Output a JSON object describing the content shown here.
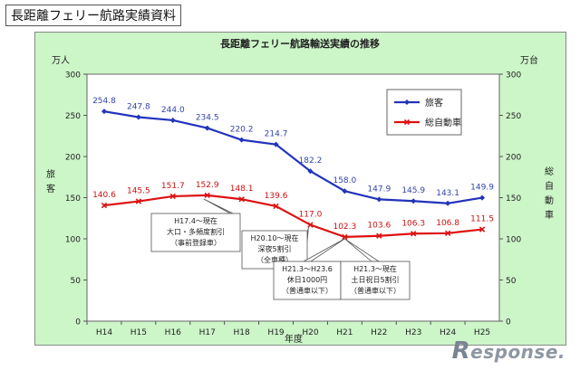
{
  "page_title": "長距離フェリー航路実績資料",
  "watermark": {
    "first": "R",
    "rest": "esponse."
  },
  "chart_data": {
    "type": "line",
    "title": "長距離フェリー航路輸送実績の推移",
    "xlabel": "年度",
    "y_unit_left": "万人",
    "y_unit_right": "万台",
    "ylabel_left": "旅客",
    "ylabel_right": "総自動車",
    "ylim": [
      0,
      300
    ],
    "yticks": [
      0,
      50,
      100,
      150,
      200,
      250,
      300
    ],
    "categories": [
      "H14",
      "H15",
      "H16",
      "H17",
      "H18",
      "H19",
      "H20",
      "H21",
      "H22",
      "H23",
      "H24",
      "H25"
    ],
    "legend_position": "top-right",
    "grid": false,
    "series": [
      {
        "name": "旅客",
        "color": "#2233bb",
        "values": [
          254.8,
          247.8,
          244.0,
          234.5,
          220.2,
          214.7,
          182.2,
          158.0,
          147.9,
          145.9,
          143.1,
          149.9
        ],
        "labels": [
          "254.8",
          "247.8",
          "244.0",
          "234.5",
          "220.2",
          "214.7",
          "182.2",
          "158.0",
          "147.9",
          "145.9",
          "143.1",
          "149.9"
        ]
      },
      {
        "name": "総自動車",
        "color": "#dd1111",
        "values": [
          140.6,
          145.5,
          151.7,
          152.9,
          148.1,
          139.6,
          117.0,
          102.3,
          103.6,
          106.3,
          106.8,
          111.5
        ],
        "labels": [
          "140.6",
          "145.5",
          "151.7",
          "152.9",
          "148.1",
          "139.6",
          "117.0",
          "102.3",
          "103.6",
          "106.3",
          "106.8",
          "111.5"
        ]
      }
    ],
    "annotations": [
      {
        "lines": [
          "H17.4～現在",
          "大口・多頻度割引",
          "（事前登録車）"
        ],
        "category_index": 3,
        "value": 152.9
      },
      {
        "lines": [
          "H20.10～現在",
          "深夜5割引",
          "（全車種）"
        ],
        "category_index": 6,
        "value": 117.0
      },
      {
        "lines": [
          "H21.3～H23.6",
          "休日1000円",
          "（普通車以下）"
        ],
        "category_index": 7,
        "value": 102.3
      },
      {
        "lines": [
          "H21.3～現在",
          "土日祝日5割引",
          "（普通車以下）"
        ],
        "category_index": 7,
        "value": 102.3
      }
    ]
  }
}
